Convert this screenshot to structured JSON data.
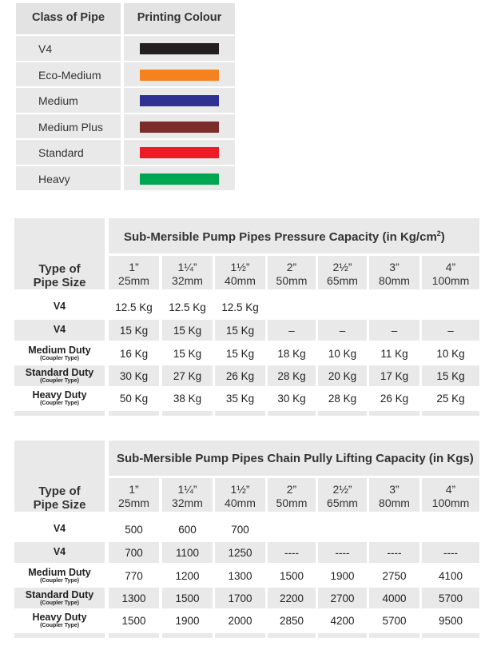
{
  "colour_table": {
    "headers": [
      "Class of Pipe",
      "Printing Colour"
    ],
    "rows": [
      {
        "name": "V4",
        "color": "#231f20"
      },
      {
        "name": "Eco-Medium",
        "color": "#f5821f"
      },
      {
        "name": "Medium",
        "color": "#2e3192"
      },
      {
        "name": "Medium Plus",
        "color": "#7b2d2b"
      },
      {
        "name": "Standard",
        "color": "#ed1c24"
      },
      {
        "name": "Heavy",
        "color": "#00a651"
      }
    ]
  },
  "pressure_table": {
    "title": "Sub-Mersible Pump Pipes Pressure  Capacity  (in Kg/cm",
    "title_sup": "2",
    "title_end": ")",
    "type_header": [
      "Type of",
      "Pipe Size"
    ],
    "sizes": [
      {
        "inch": "1”",
        "mm": "25mm"
      },
      {
        "inch": "1¼”",
        "mm": "32mm"
      },
      {
        "inch": "1½”",
        "mm": "40mm"
      },
      {
        "inch": "2”",
        "mm": "50mm"
      },
      {
        "inch": "2½”",
        "mm": "65mm"
      },
      {
        "inch": "3”",
        "mm": "80mm"
      },
      {
        "inch": "4”",
        "mm": "100mm"
      }
    ],
    "rows": [
      {
        "label": "V4",
        "sub": "",
        "values": [
          "12.5 Kg",
          "12.5 Kg",
          "12.5 Kg",
          "",
          "",
          "",
          ""
        ]
      },
      {
        "label": "V4",
        "sub": "",
        "values": [
          "15 Kg",
          "15 Kg",
          "15 Kg",
          "–",
          "–",
          "–",
          "–"
        ]
      },
      {
        "label": "Medium Duty",
        "sub": "(Coupler Type)",
        "values": [
          "16 Kg",
          "15 Kg",
          "15 Kg",
          "18 Kg",
          "10 Kg",
          "11 Kg",
          "10 Kg"
        ]
      },
      {
        "label": "Standard Duty",
        "sub": "(Coupler Type)",
        "values": [
          "30 Kg",
          "27 Kg",
          "26 Kg",
          "28 Kg",
          "20 Kg",
          "17 Kg",
          "15 Kg"
        ]
      },
      {
        "label": "Heavy Duty",
        "sub": "(Coupler Type)",
        "values": [
          "50 Kg",
          "38 Kg",
          "35 Kg",
          "30 Kg",
          "28 Kg",
          "26 Kg",
          "25 Kg"
        ]
      }
    ]
  },
  "lifting_table": {
    "title": "Sub-Mersible Pump Pipes Chain Pully Lifting Capacity (in Kgs)",
    "type_header": [
      "Type of",
      "Pipe Size"
    ],
    "sizes": [
      {
        "inch": "1”",
        "mm": "25mm"
      },
      {
        "inch": "1¼”",
        "mm": "32mm"
      },
      {
        "inch": "1½”",
        "mm": "40mm"
      },
      {
        "inch": "2”",
        "mm": "50mm"
      },
      {
        "inch": "2½”",
        "mm": "65mm"
      },
      {
        "inch": "3”",
        "mm": "80mm"
      },
      {
        "inch": "4”",
        "mm": "100mm"
      }
    ],
    "rows": [
      {
        "label": "V4",
        "sub": "",
        "values": [
          "500",
          "600",
          "700",
          "",
          "",
          "",
          ""
        ]
      },
      {
        "label": "V4",
        "sub": "",
        "values": [
          "700",
          "1100",
          "1250",
          "----",
          "----",
          "----",
          "----"
        ]
      },
      {
        "label": "Medium Duty",
        "sub": "(Coupler Type)",
        "values": [
          "770",
          "1200",
          "1300",
          "1500",
          "1900",
          "2750",
          "4100"
        ]
      },
      {
        "label": "Standard Duty",
        "sub": "(Coupler Type)",
        "values": [
          "1300",
          "1500",
          "1700",
          "2200",
          "2700",
          "4000",
          "5700"
        ]
      },
      {
        "label": "Heavy Duty",
        "sub": "(Coupler Type)",
        "values": [
          "1500",
          "1900",
          "2000",
          "2850",
          "4200",
          "5700",
          "9500"
        ]
      }
    ]
  }
}
